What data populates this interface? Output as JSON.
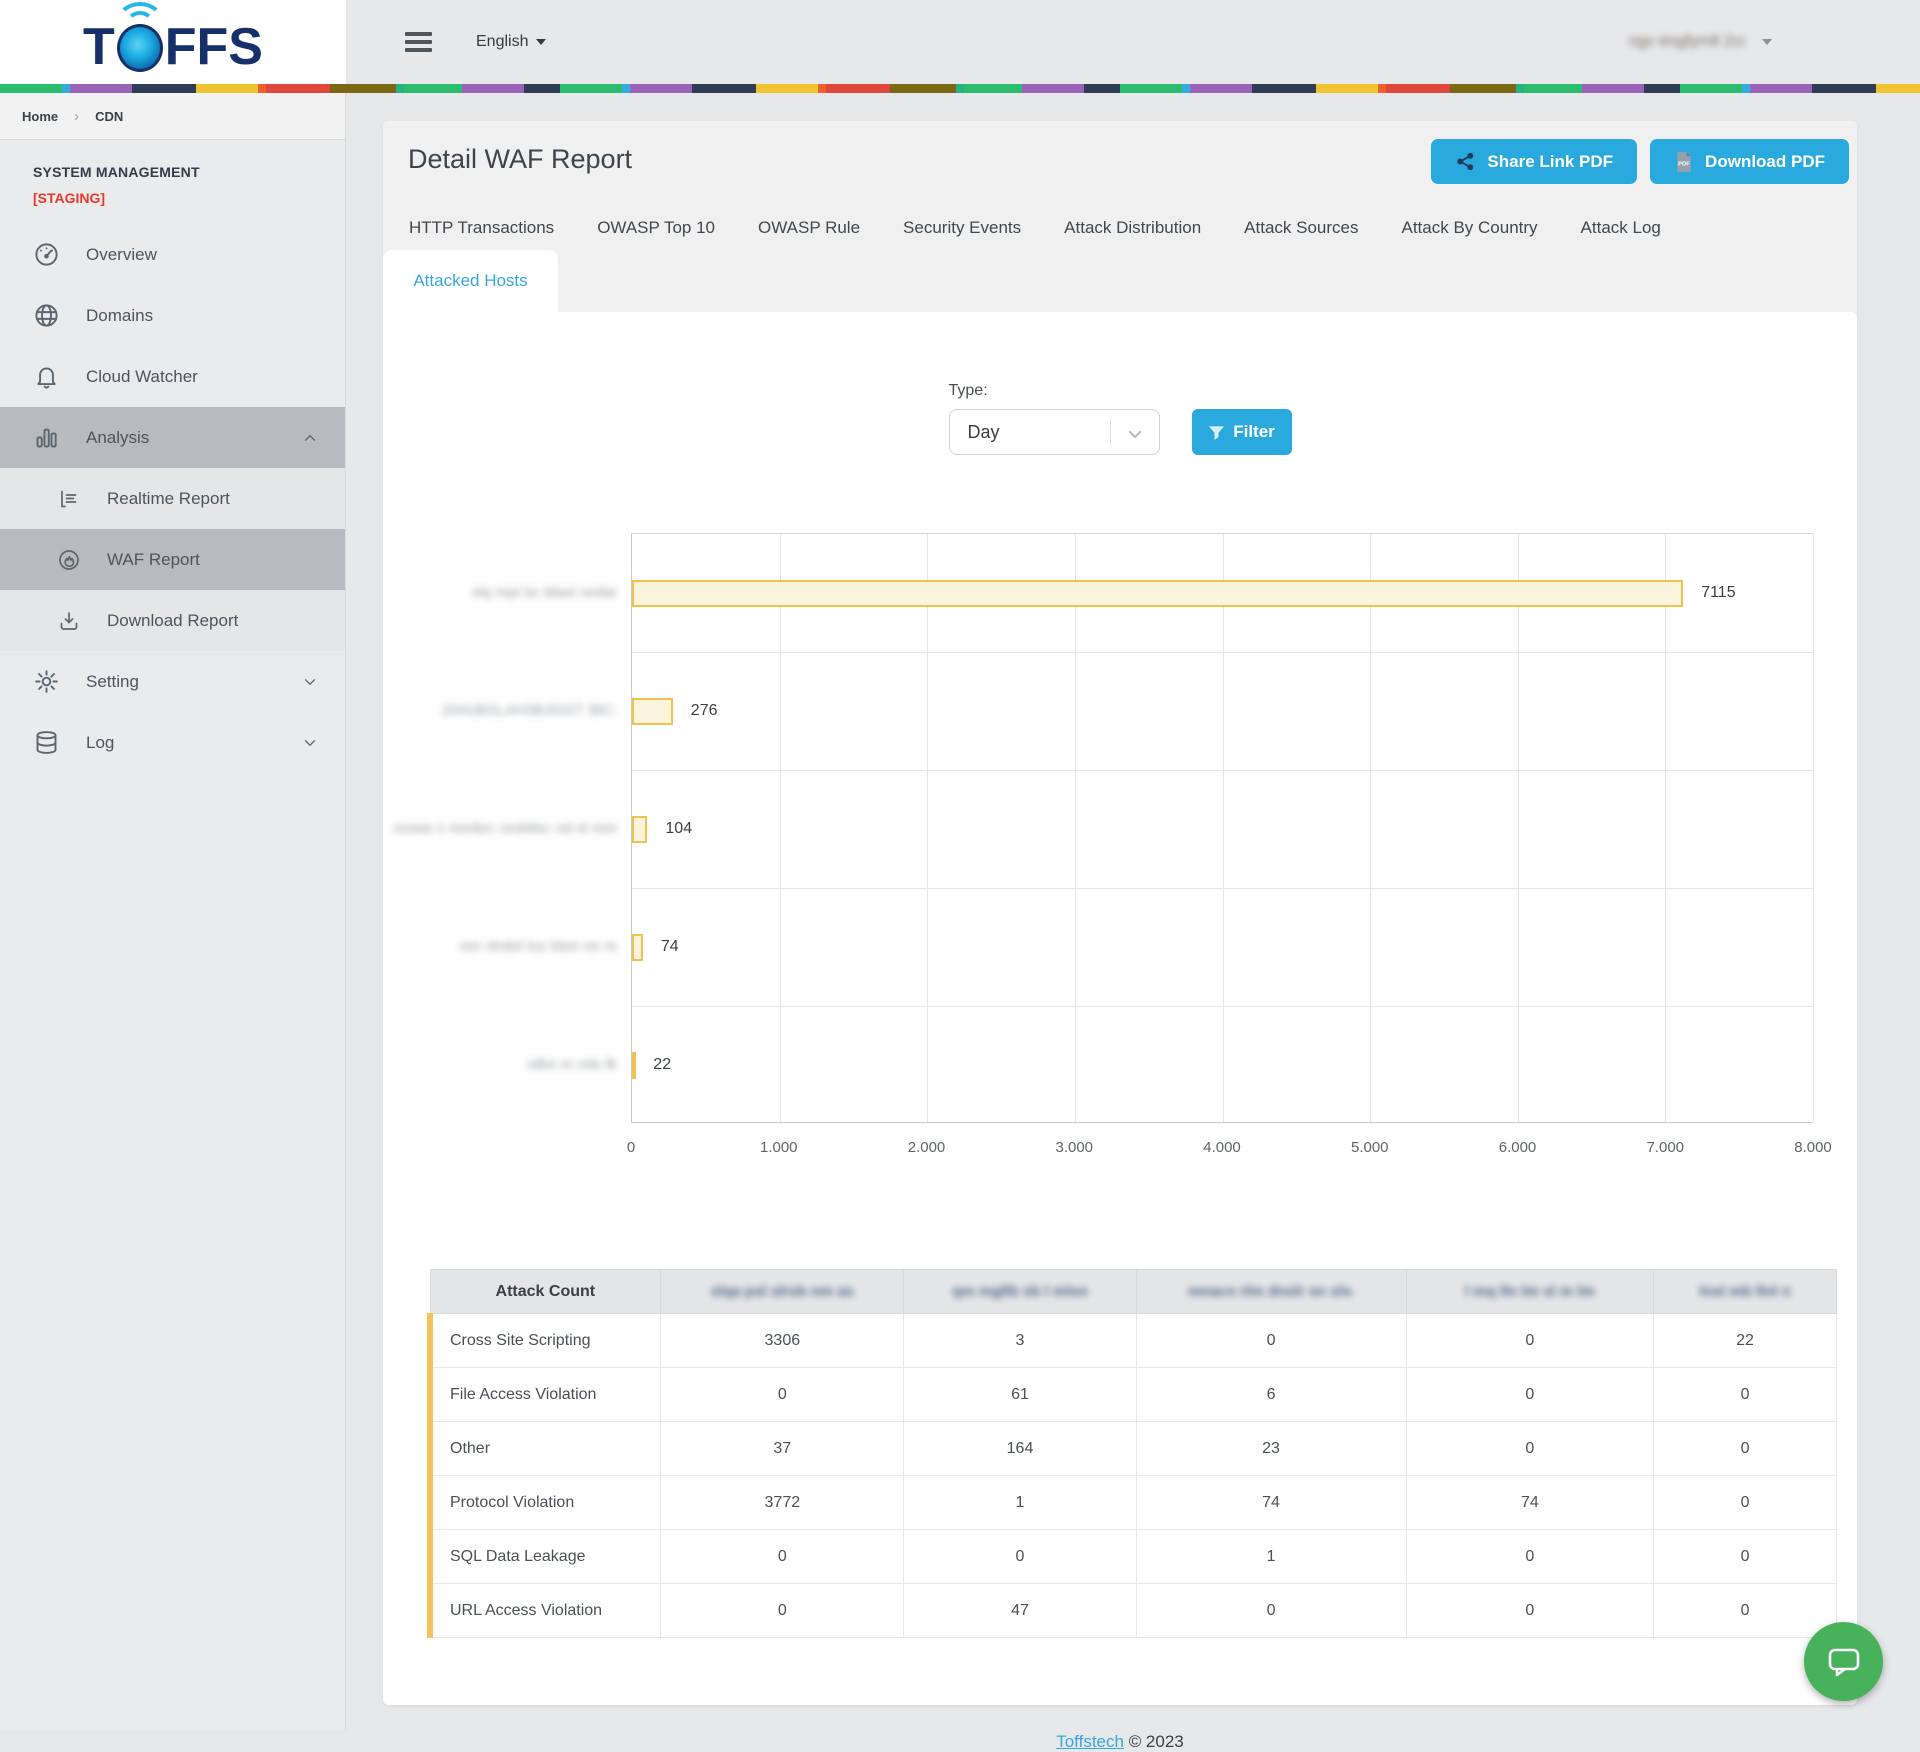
{
  "brand": {
    "logo_left": "T",
    "logo_right": "FFS",
    "name": "TOFFS"
  },
  "header": {
    "language": "English",
    "user_masked": "ngv tmgfyrnll 2cr"
  },
  "breadcrumb": {
    "items": [
      "Home",
      "CDN"
    ]
  },
  "sidebar": {
    "section_title": "SYSTEM MANAGEMENT",
    "section_env": "[STAGING]",
    "items": [
      {
        "label": "Overview",
        "icon": "gauge"
      },
      {
        "label": "Domains",
        "icon": "globe"
      },
      {
        "label": "Cloud Watcher",
        "icon": "bell"
      },
      {
        "label": "Analysis",
        "icon": "bars",
        "active": true,
        "chevron": "up"
      },
      {
        "label": "Realtime Report",
        "icon": "list",
        "sub": true
      },
      {
        "label": "WAF Report",
        "icon": "flame",
        "sub": true,
        "active": true
      },
      {
        "label": "Download Report",
        "icon": "download",
        "sub": true
      },
      {
        "label": "Setting",
        "icon": "gear",
        "chevron": "down"
      },
      {
        "label": "Log",
        "icon": "database",
        "chevron": "down"
      }
    ]
  },
  "page": {
    "title": "Detail WAF Report",
    "share_button": "Share Link PDF",
    "download_button": "Download PDF",
    "tabs": [
      "HTTP Transactions",
      "OWASP Top 10",
      "OWASP Rule",
      "Security Events",
      "Attack Distribution",
      "Attack Sources",
      "Attack By Country",
      "Attack Log"
    ],
    "active_tab": "Attacked Hosts",
    "filter": {
      "type_label": "Type:",
      "type_value": "Day",
      "filter_button": "Filter"
    }
  },
  "chart_data": {
    "type": "bar",
    "orientation": "horizontal",
    "title": "",
    "categories_masked": [
      "slq mpt bc blasl nmlar",
      "2041BGLAH3BJGGT IBC:",
      "mnws n mmbrc nmbtlsc nd nl mm",
      "mrr rlmbrl lcs lrbm nn m",
      "rdbn m mls lb"
    ],
    "categories_note": "host names redacted/blurred in source image",
    "values": [
      7115,
      276,
      104,
      74,
      22
    ],
    "value_labels": [
      "7115",
      "276",
      "104",
      "74",
      "22"
    ],
    "xlim": [
      0,
      8000
    ],
    "x_ticks": [
      "0",
      "1.000",
      "2.000",
      "3.000",
      "4.000",
      "5.000",
      "6.000",
      "7.000",
      "8.000"
    ],
    "grid": true,
    "bar_fill": "#fdf4dd",
    "bar_border": "#f2c14e"
  },
  "table": {
    "header_first": "Attack Count",
    "columns_masked": [
      "slqa psl slrsb nm as",
      "qm mgllb sb l mlsn",
      "mnacn rlm dnslr sn slv.",
      "l mq lln lm sl m lm",
      "lnsl mb llnl n"
    ],
    "rows": [
      {
        "label": "Cross Site Scripting",
        "values": [
          "3306",
          "3",
          "0",
          "0",
          "22"
        ]
      },
      {
        "label": "File Access Violation",
        "values": [
          "0",
          "61",
          "6",
          "0",
          "0"
        ]
      },
      {
        "label": "Other",
        "values": [
          "37",
          "164",
          "23",
          "0",
          "0"
        ]
      },
      {
        "label": "Protocol Violation",
        "values": [
          "3772",
          "1",
          "74",
          "74",
          "0"
        ]
      },
      {
        "label": "SQL Data Leakage",
        "values": [
          "0",
          "0",
          "1",
          "0",
          "0"
        ]
      },
      {
        "label": "URL Access Violation",
        "values": [
          "0",
          "47",
          "0",
          "0",
          "0"
        ]
      }
    ]
  },
  "footer": {
    "link": "Toffstech",
    "copyright": "© 2023"
  },
  "colors": {
    "accent": "#29a9dd",
    "active_tab_text": "#3aa7d9",
    "bar_fill": "#fdf4dd",
    "bar_border": "#f2c14e",
    "table_accent": "#f5c35c",
    "staging_red": "#e8392a",
    "chat_green": "#47b15b"
  }
}
